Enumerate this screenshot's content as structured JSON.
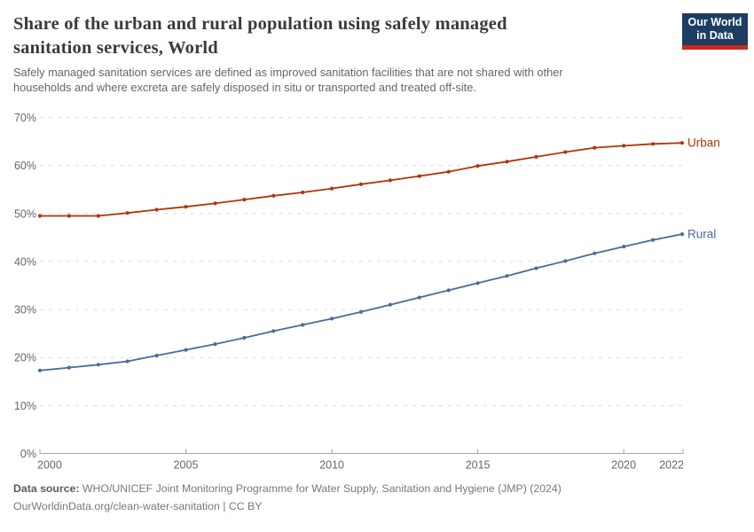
{
  "header": {
    "title": "Share of the urban and rural population using safely managed sanitation services, World",
    "title_lines": [
      "Share of the urban and rural population using safely managed",
      "sanitation services, World"
    ],
    "subtitle_lines": [
      "Safely managed sanitation services are defined as improved sanitation facilities that are not shared with other",
      "households and where excreta are safely disposed in situ or transported and treated off-site."
    ],
    "logo": {
      "line1": "Our World",
      "line2": "in Data"
    }
  },
  "chart_data": {
    "type": "line",
    "title": "Share of the urban and rural population using safely managed sanitation services, World",
    "x": [
      2000,
      2001,
      2002,
      2003,
      2004,
      2005,
      2006,
      2007,
      2008,
      2009,
      2010,
      2011,
      2012,
      2013,
      2014,
      2015,
      2016,
      2017,
      2018,
      2019,
      2020,
      2021,
      2022
    ],
    "series": [
      {
        "name": "Urban",
        "color": "#B13507",
        "values": [
          49.5,
          49.5,
          49.5,
          50.1,
          50.8,
          51.4,
          52.1,
          52.9,
          53.7,
          54.4,
          55.2,
          56.1,
          56.9,
          57.8,
          58.7,
          59.9,
          60.8,
          61.8,
          62.8,
          63.7,
          64.1,
          64.5,
          64.7
        ]
      },
      {
        "name": "Rural",
        "color": "#4C6A9C",
        "values": [
          17.3,
          17.9,
          18.5,
          19.2,
          20.4,
          21.6,
          22.8,
          24.1,
          25.5,
          26.8,
          28.1,
          29.5,
          31.0,
          32.5,
          34.0,
          35.5,
          37.0,
          38.6,
          40.1,
          41.7,
          43.1,
          44.5,
          45.7
        ]
      }
    ],
    "xlabel": "",
    "ylabel": "",
    "ylim": [
      0,
      70
    ],
    "yticks": [
      0,
      10,
      20,
      30,
      40,
      50,
      60,
      70
    ],
    "ytick_suffix": "%",
    "xticks": [
      2000,
      2005,
      2010,
      2015,
      2020,
      2022
    ],
    "grid": "horizontal-dashed",
    "legend_position": "line-end-labels",
    "markers": "dot-every-year"
  },
  "footer": {
    "datasource_label": "Data source:",
    "datasource": "WHO/UNICEF Joint Monitoring Programme for Water Supply, Sanitation and Hygiene (JMP) (2024)",
    "url_line": "OurWorldinData.org/clean-water-sanitation | CC BY"
  },
  "colors": {
    "urban_series": "#B13507",
    "rural_series": "#4C6A9C",
    "logo_navy": "#1D3D63",
    "logo_red": "#D0281C",
    "gridline": "#DCDCDC",
    "axis": "#A5A5A5",
    "tick_text": "#666666"
  }
}
